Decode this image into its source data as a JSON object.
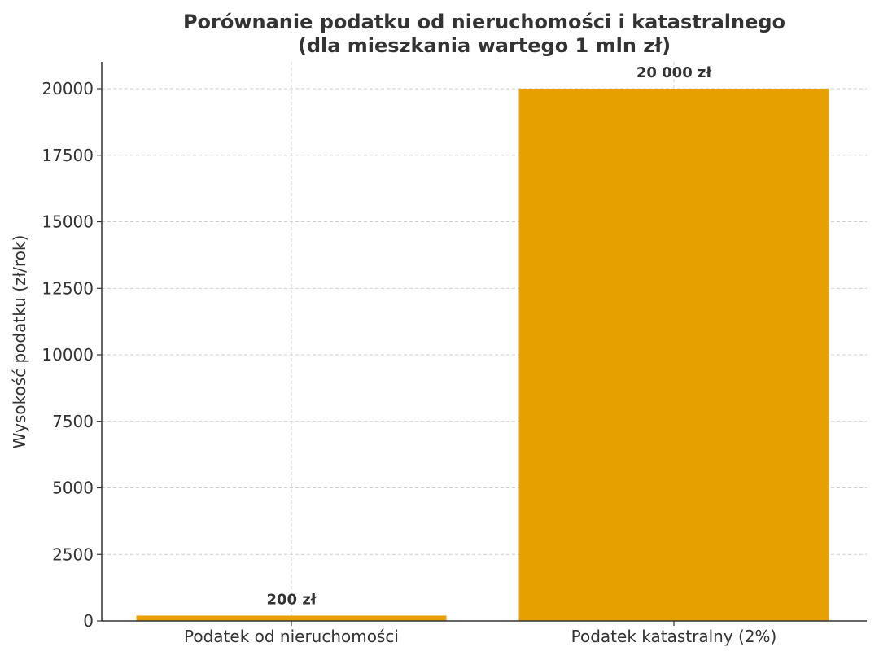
{
  "chart_data": {
    "type": "bar",
    "title": "Porównanie podatku od nieruchomości i katastralnego\n(dla mieszkania wartego 1 mln zł)",
    "title_lines": [
      "Porównanie podatku od nieruchomości i katastralnego",
      "(dla mieszkania wartego 1 mln zł)"
    ],
    "xlabel": "",
    "ylabel": "Wysokość podatku (zł/rok)",
    "categories": [
      "Podatek od nieruchomości",
      "Podatek katastralny (2%)"
    ],
    "values": [
      200,
      20000
    ],
    "data_labels": [
      "200 zł",
      "20 000 zł"
    ],
    "ylim": [
      0,
      21000
    ],
    "yticks": [
      0,
      2500,
      5000,
      7500,
      10000,
      12500,
      15000,
      17500,
      20000
    ],
    "grid": true,
    "bar_color": "#E6A000"
  }
}
